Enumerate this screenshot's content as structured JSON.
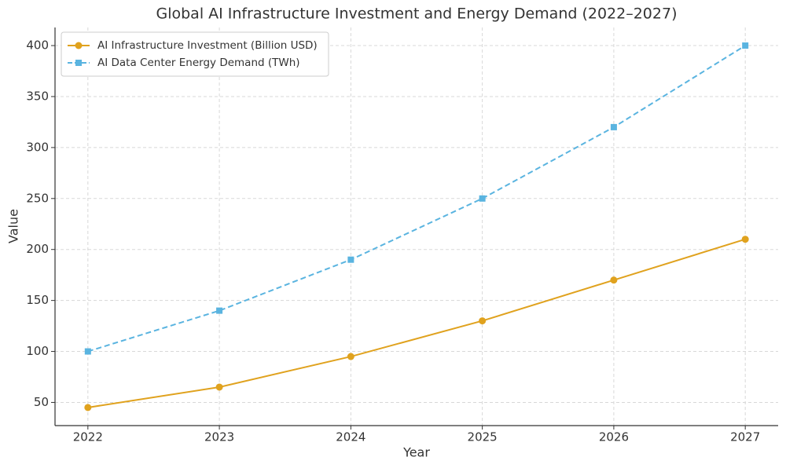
{
  "chart_data": {
    "type": "line",
    "title": "Global AI Infrastructure Investment and Energy Demand (2022–2027)",
    "x_label": "Year",
    "y_label": "Value",
    "x": [
      2022,
      2023,
      2024,
      2025,
      2026,
      2027
    ],
    "series": [
      {
        "name": "AI Infrastructure Investment (Billion USD)",
        "color": "#e0a21e",
        "linestyle": "solid",
        "marker": "circle",
        "values": [
          45,
          65,
          95,
          130,
          170,
          210
        ]
      },
      {
        "name": "AI Data Center Energy Demand (TWh)",
        "color": "#5ab4e0",
        "linestyle": "dashed",
        "marker": "square",
        "values": [
          100,
          140,
          190,
          250,
          320,
          400
        ]
      }
    ],
    "xlim": [
      2021.75,
      2027.25
    ],
    "xticks": [
      2022,
      2023,
      2024,
      2025,
      2026,
      2027
    ],
    "ylim": [
      27.25,
      417.75
    ],
    "yticks": [
      50,
      100,
      150,
      200,
      250,
      300,
      350,
      400
    ],
    "grid": true,
    "legend": "upper left"
  }
}
